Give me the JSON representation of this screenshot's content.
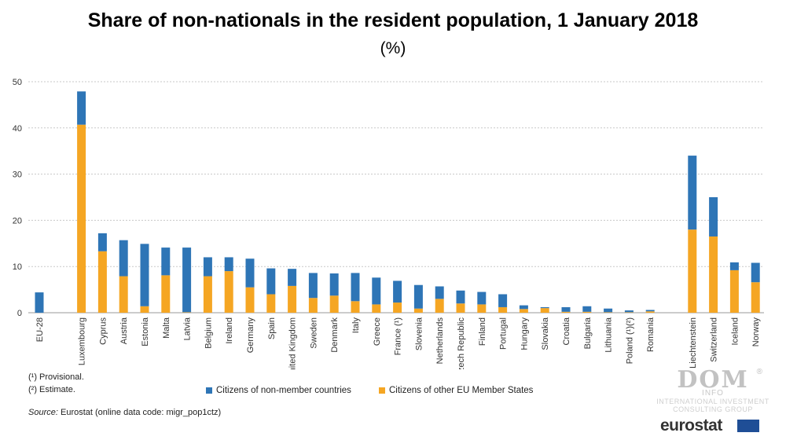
{
  "chart_data": {
    "type": "bar",
    "stacked": true,
    "title": "Share of non-nationals in the resident population, 1 January 2018",
    "subtitle": "(%)",
    "ylim": [
      0,
      50
    ],
    "yticks": [
      0,
      10,
      20,
      30,
      40,
      50
    ],
    "grid": true,
    "legend_position": "bottom",
    "categories": [
      "EU-28",
      "Luxembourg",
      "Cyprus",
      "Austria",
      "Estonia",
      "Malta",
      "Latvia",
      "Belgium",
      "Ireland",
      "Germany",
      "Spain",
      "United Kingdom",
      "Sweden",
      "Denmark",
      "Italy",
      "Greece",
      "France (¹)",
      "Slovenia",
      "Netherlands",
      "Czech Republic",
      "Finland",
      "Portugal",
      "Hungary",
      "Slovakia",
      "Croatia",
      "Bulgaria",
      "Lithuania",
      "Poland (¹)(²)",
      "Romania",
      "Liechtenstein",
      "Switzerland",
      "Iceland",
      "Norway"
    ],
    "series": [
      {
        "name": "Citizens of other EU Member States",
        "color": "#f5a623",
        "values": [
          0,
          40.7,
          13.3,
          7.9,
          1.4,
          8.1,
          0.1,
          7.9,
          9.0,
          5.5,
          4.0,
          5.8,
          3.2,
          3.7,
          2.5,
          1.8,
          2.2,
          0.9,
          3.0,
          2.0,
          1.8,
          1.2,
          0.8,
          1.0,
          0.2,
          0.2,
          0.1,
          0.1,
          0.3,
          18.0,
          16.5,
          9.2,
          6.6
        ]
      },
      {
        "name": "Citizens of non-member countries",
        "color": "#2e75b6",
        "values": [
          4.4,
          7.2,
          3.9,
          7.8,
          13.5,
          6.0,
          14.0,
          4.1,
          3.0,
          6.2,
          5.6,
          3.7,
          5.4,
          4.8,
          6.1,
          5.8,
          4.7,
          5.1,
          2.7,
          2.8,
          2.7,
          2.8,
          0.8,
          0.2,
          1.0,
          1.2,
          0.8,
          0.4,
          0.3,
          16.0,
          8.5,
          1.7,
          4.2
        ]
      }
    ]
  },
  "notes": [
    "(¹) Provisional.",
    "(²) Estimate."
  ],
  "legend": [
    {
      "label": "Citizens of non-member countries",
      "color": "#2e75b6"
    },
    {
      "label": "Citizens of other EU Member States",
      "color": "#f5a623"
    }
  ],
  "source": {
    "label": "Source:",
    "text": "Eurostat (online data code: migr_pop1ctz)"
  },
  "watermark": {
    "logo": "DOM",
    "reg": "®",
    "info": "INFO",
    "line1": "INTERNATIONAL INVESTMENT",
    "line2": "CONSULTING GROUP"
  },
  "branding": {
    "eurostat": "eurostat"
  }
}
